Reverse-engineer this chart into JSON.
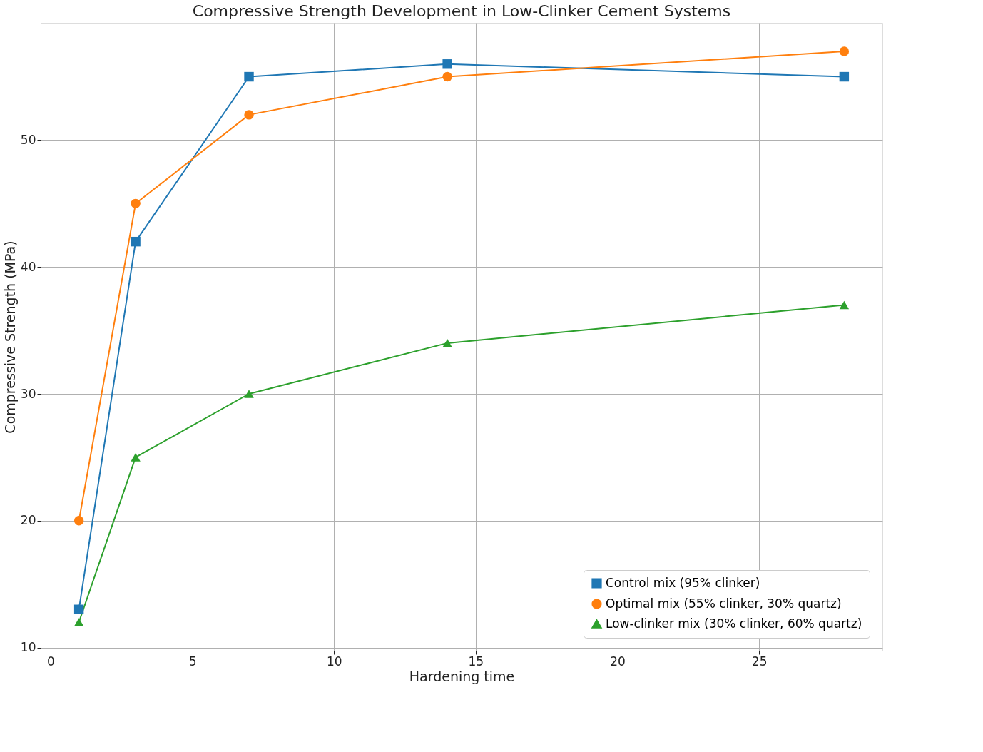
{
  "chart_data": {
    "type": "line",
    "title": "Compressive Strength Development in Low-Clinker Cement Systems",
    "xlabel": "Hardening time",
    "ylabel": "Compressive Strength (MPa)",
    "x": [
      1,
      3,
      7,
      14,
      28
    ],
    "series": [
      {
        "name": "Control mix (95% clinker)",
        "color": "#1f77b4",
        "marker": "square",
        "values": [
          13,
          42,
          55,
          56,
          55
        ]
      },
      {
        "name": "Optimal mix (55% clinker, 30% quartz)",
        "color": "#ff7f0e",
        "marker": "circle",
        "values": [
          20,
          45,
          52,
          55,
          57
        ]
      },
      {
        "name": "Low-clinker mix (30% clinker, 60% quartz)",
        "color": "#2ca02c",
        "marker": "triangle",
        "values": [
          12,
          25,
          30,
          34,
          37
        ]
      }
    ],
    "xlim": [
      -0.35,
      29.35
    ],
    "ylim": [
      9.75,
      59.25
    ],
    "xticks": [
      0,
      5,
      10,
      15,
      20,
      25
    ],
    "yticks": [
      10,
      20,
      30,
      40,
      50
    ],
    "grid": true,
    "legend": "bottom right",
    "line_style": "solid"
  }
}
